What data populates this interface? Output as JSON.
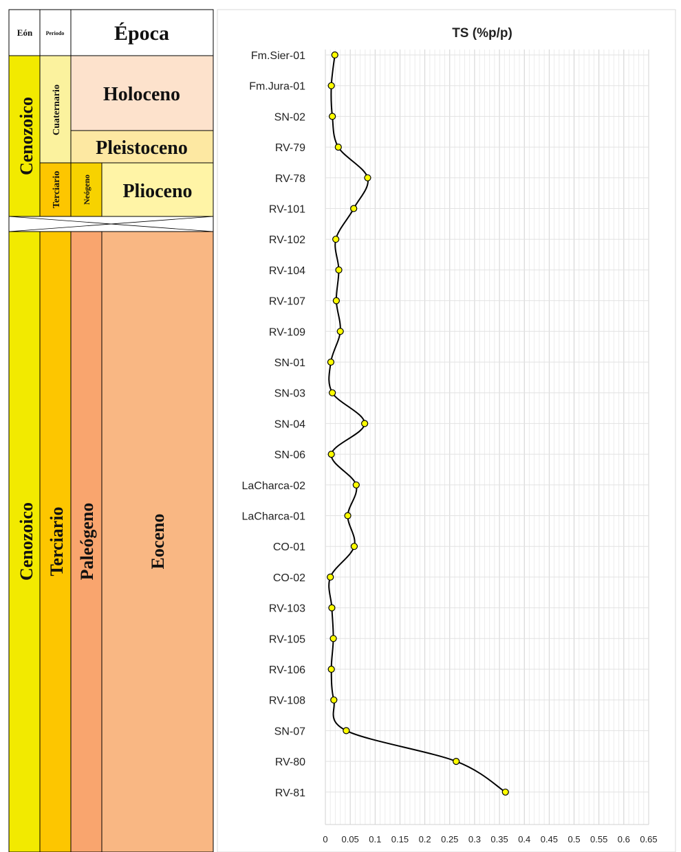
{
  "strat_column": {
    "headers": {
      "eon": "Eón",
      "period": "Periodo",
      "epoch": "Época"
    },
    "upper": {
      "eon": "Cenozoico",
      "period_cuaternario": "Cuaternario",
      "period_terciario": "Terciario",
      "subperiod_neogeno": "Neógeno",
      "epoch_holoceno": "Holoceno",
      "epoch_pleistoceno": "Pleistoceno",
      "epoch_plioceno": "Plioceno"
    },
    "lower": {
      "eon": "Cenozoico",
      "period": "Terciario",
      "subperiod": "Paleógeno",
      "epoch": "Eoceno"
    },
    "colors": {
      "eon": "#f2ea00",
      "period_upper": "#fbf29e",
      "period_terciario": "#fdc600",
      "neogeno": "#f7d200",
      "holoceno": "#fde2cc",
      "pleistoceno": "#fde8a2",
      "plioceno": "#fff4a6",
      "paleogeno": "#f9a56e",
      "eoceno": "#f9b783"
    }
  },
  "chart_data": {
    "type": "line",
    "title": "TS (%p/p)",
    "orientation": "vertical-profile",
    "xlabel": "",
    "ylabel": "",
    "xlim": [
      0,
      0.65
    ],
    "xticks": [
      "0",
      "0.05",
      "0.1",
      "0.15",
      "0.2",
      "0.25",
      "0.3",
      "0.35",
      "0.4",
      "0.45",
      "0.5",
      "0.55",
      "0.6",
      "0.65"
    ],
    "marker_color": "#ffff00",
    "line_color": "#000000",
    "grid": true,
    "samples": [
      {
        "label": "Fm.Sier-01",
        "value": 0.019
      },
      {
        "label": "Fm.Jura-01",
        "value": 0.012
      },
      {
        "label": "SN-02",
        "value": 0.014
      },
      {
        "label": "RV-79",
        "value": 0.026
      },
      {
        "label": "RV-78",
        "value": 0.085
      },
      {
        "label": "RV-101",
        "value": 0.057
      },
      {
        "label": "RV-102",
        "value": 0.021
      },
      {
        "label": "RV-104",
        "value": 0.027
      },
      {
        "label": "RV-107",
        "value": 0.022
      },
      {
        "label": "RV-109",
        "value": 0.03
      },
      {
        "label": "SN-01",
        "value": 0.011
      },
      {
        "label": "SN-03",
        "value": 0.014
      },
      {
        "label": "SN-04",
        "value": 0.079
      },
      {
        "label": "SN-06",
        "value": 0.012
      },
      {
        "label": "LaCharca-02",
        "value": 0.062
      },
      {
        "label": "LaCharca-01",
        "value": 0.045
      },
      {
        "label": "CO-01",
        "value": 0.058
      },
      {
        "label": "CO-02",
        "value": 0.01
      },
      {
        "label": "RV-103",
        "value": 0.013
      },
      {
        "label": "RV-105",
        "value": 0.016
      },
      {
        "label": "RV-106",
        "value": 0.012
      },
      {
        "label": "RV-108",
        "value": 0.017
      },
      {
        "label": "SN-07",
        "value": 0.042
      },
      {
        "label": "RV-80",
        "value": 0.263
      },
      {
        "label": "RV-81",
        "value": 0.362
      }
    ]
  }
}
